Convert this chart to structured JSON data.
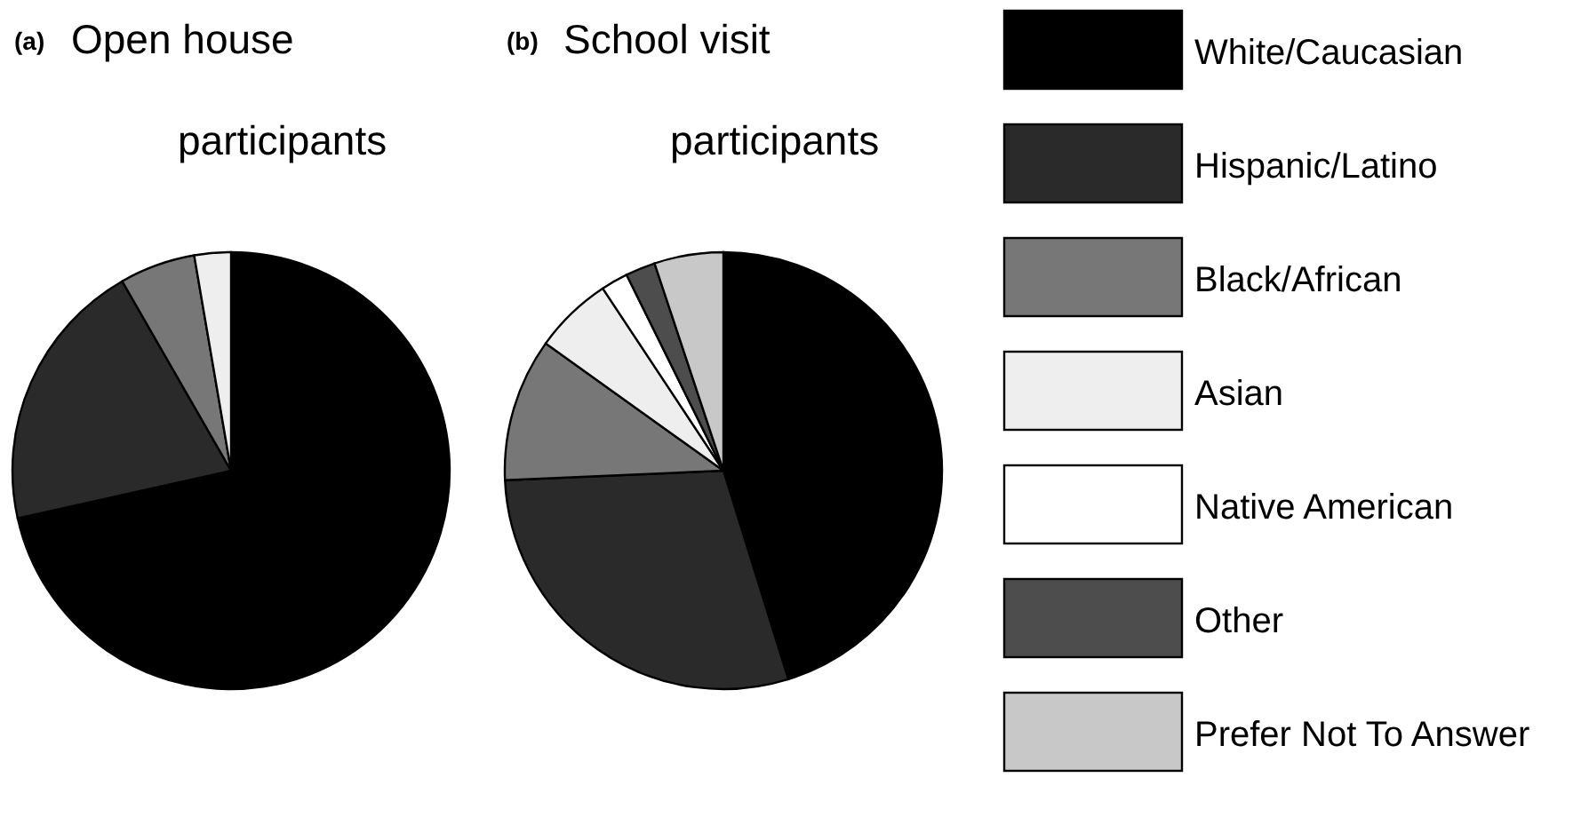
{
  "chart_data": [
    {
      "type": "pie",
      "title": "Open house participants",
      "annotations": [
        "(a)"
      ],
      "categories": [
        null,
        null,
        null,
        null
      ],
      "values": [
        71.5,
        20.2,
        5.6,
        2.7
      ],
      "colors": [
        "#000000",
        "#2a2a2a",
        "#777777",
        "#eeeeee"
      ]
    },
    {
      "type": "pie",
      "title": "School visit participants",
      "annotations": [
        "(b)"
      ],
      "categories": [
        "White/Caucasian",
        "Hispanic/Latino",
        "Black/African",
        "Asian",
        "Native American",
        "Other",
        "Prefer Not To Answer"
      ],
      "values": [
        45.2,
        29.1,
        10.6,
        5.8,
        2.0,
        2.2,
        5.1
      ],
      "colors": [
        "#000000",
        "#2a2a2a",
        "#777777",
        "#eeeeee",
        "#ffffff",
        "#4d4d4d",
        "#c8c8c8"
      ],
      "legend": "right"
    }
  ]
}
